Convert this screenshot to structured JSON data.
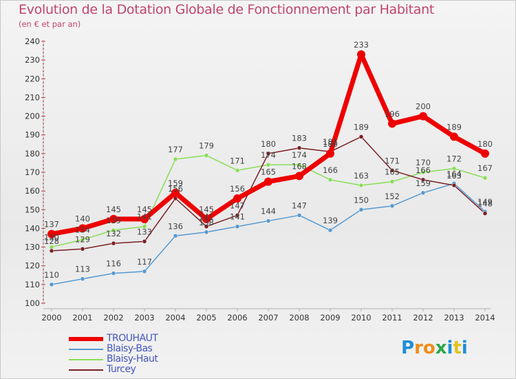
{
  "header": {
    "title": "Evolution de la Dotation Globale de Fonctionnement par Habitant",
    "subtitle": "(en € et par an)"
  },
  "logo": {
    "text": "Proxiti",
    "letters": [
      "P",
      "r",
      "o",
      "x",
      "i",
      "t",
      "i"
    ],
    "colors": [
      "#1f8fd6",
      "#f08c1a",
      "#f08c1a",
      "#2aa84a",
      "#1f8fd6",
      "#e4c21c",
      "#1f8fd6"
    ]
  },
  "colors": {
    "title": "#c0456e",
    "TROUHAUT": "#ee0000",
    "Blaisy-Bas": "#5599d1",
    "Blaisy-Haut": "#88dd55",
    "Turcey": "#7a1f24"
  },
  "chart_data": {
    "type": "line",
    "title": "Evolution de la Dotation Globale de Fonctionnement par Habitant",
    "subtitle": "(en € et par an)",
    "x": [
      "2000",
      "2001",
      "2002",
      "2003",
      "2004",
      "2005",
      "2006",
      "2007",
      "2008",
      "2009",
      "2010",
      "2011",
      "2012",
      "2013",
      "2014"
    ],
    "ylim": [
      100,
      240
    ],
    "yticks": [
      100,
      110,
      120,
      130,
      140,
      150,
      160,
      170,
      180,
      190,
      200,
      210,
      220,
      230,
      240
    ],
    "grid": false,
    "legend_position": "bottom-left",
    "series": [
      {
        "name": "TROUHAUT",
        "color": "#ee0000",
        "values": [
          137,
          140,
          145,
          145,
          159,
          145,
          156,
          165,
          168,
          180,
          233,
          196,
          200,
          189,
          180
        ]
      },
      {
        "name": "Blaisy-Bas",
        "color": "#5599d1",
        "values": [
          110,
          113,
          116,
          117,
          136,
          138,
          141,
          144,
          147,
          139,
          150,
          152,
          159,
          164,
          149
        ]
      },
      {
        "name": "Blaisy-Haut",
        "color": "#88dd55",
        "values": [
          130,
          134,
          139,
          141,
          177,
          179,
          171,
          174,
          174,
          166,
          163,
          165,
          170,
          172,
          167
        ]
      },
      {
        "name": "Turcey",
        "color": "#7a1f24",
        "values": [
          128,
          129,
          132,
          133,
          156,
          141,
          147,
          180,
          183,
          181,
          189,
          171,
          166,
          163,
          148
        ]
      }
    ]
  }
}
